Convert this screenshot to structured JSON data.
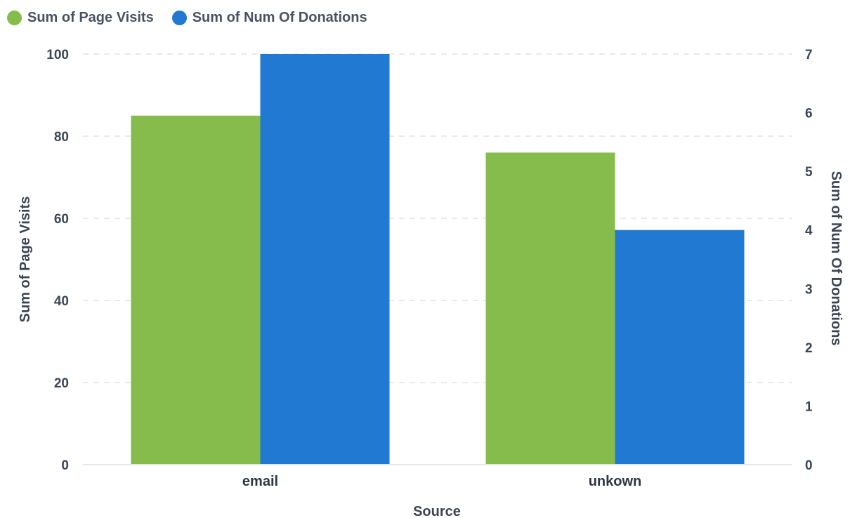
{
  "colors": {
    "page_visits": "#86bc4b",
    "donations": "#2179d2",
    "grid": "#e2e4e8",
    "text": "#3d4555"
  },
  "legend": [
    {
      "label": "Sum of Page Visits"
    },
    {
      "label": "Sum of Num Of Donations"
    }
  ],
  "chart_data": {
    "type": "bar",
    "title": "",
    "xlabel": "Source",
    "categories": [
      "email",
      "unkown"
    ],
    "series": [
      {
        "name": "Sum of Page Visits",
        "axis": "left",
        "values": [
          85,
          76
        ]
      },
      {
        "name": "Sum of Num Of Donations",
        "axis": "right",
        "values": [
          7,
          4
        ]
      }
    ],
    "y_left": {
      "label": "Sum of Page Visits",
      "range": [
        0,
        100
      ],
      "ticks": [
        0,
        20,
        40,
        60,
        80,
        100
      ]
    },
    "y_right": {
      "label": "Sum of Num Of Donations",
      "range": [
        0,
        7
      ],
      "ticks": [
        0,
        1,
        2,
        3,
        4,
        5,
        6,
        7
      ]
    },
    "grid": true,
    "legend_position": "top-left"
  }
}
